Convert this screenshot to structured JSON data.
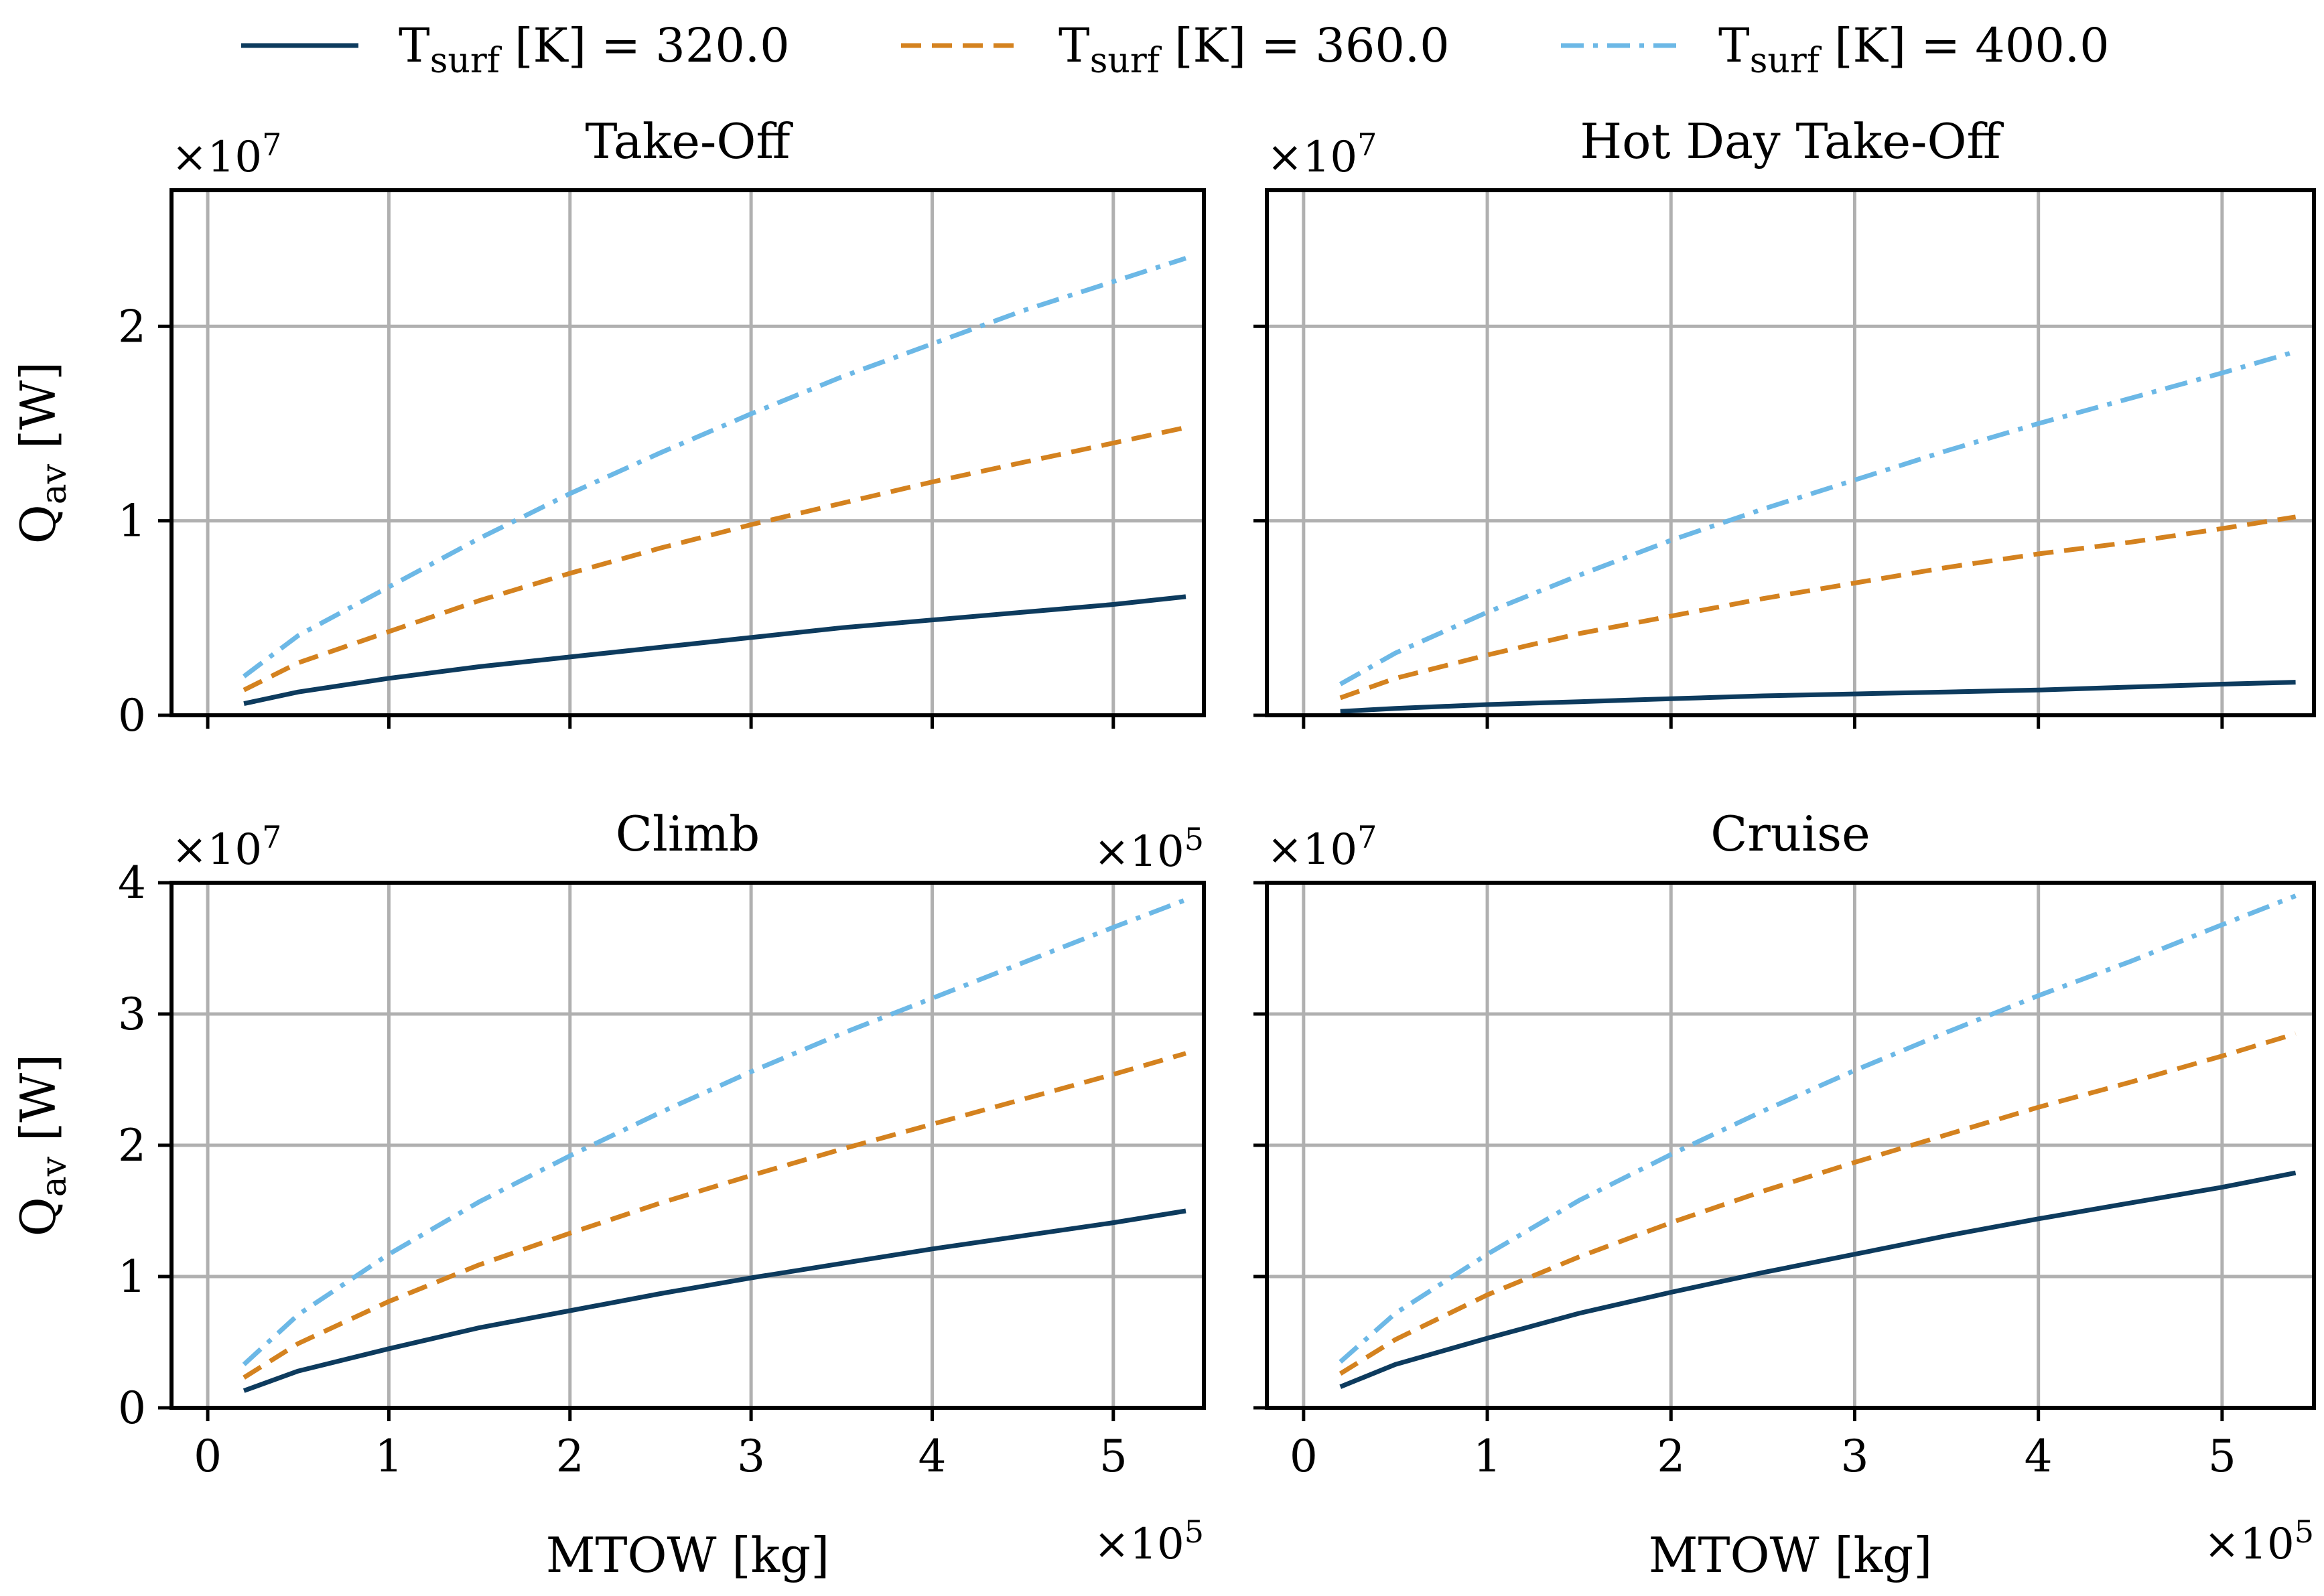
{
  "legend": {
    "entries": [
      {
        "label_main": "T",
        "label_sub": "surf",
        "label_rest": " [K] = 320.0",
        "color": "#0d3b5e",
        "dash": "solid"
      },
      {
        "label_main": "T",
        "label_sub": "surf",
        "label_rest": " [K] = 360.0",
        "color": "#d4821f",
        "dash": "dashed"
      },
      {
        "label_main": "T",
        "label_sub": "surf",
        "label_rest": " [K] = 400.0",
        "color": "#6cb8e6",
        "dash": "dashdot"
      }
    ]
  },
  "colors": {
    "grid": "#b0b0b0",
    "axes": "#000000"
  },
  "chart_data": [
    {
      "type": "line",
      "title": "Take-Off",
      "xlabel": "",
      "ylabel": "Q_av [W]",
      "xlim": [
        -0.2,
        5.5
      ],
      "ylim": [
        0,
        2.7
      ],
      "x_multiplier": "×10^5",
      "y_multiplier": "×10^7",
      "xticks": [
        0,
        1,
        2,
        3,
        4,
        5
      ],
      "yticks": [
        0,
        1,
        2
      ],
      "show_xtick_labels": false,
      "show_ytick_labels": true,
      "x": [
        0.2,
        0.5,
        1.0,
        1.5,
        2.0,
        2.5,
        3.0,
        3.5,
        4.0,
        4.5,
        5.0,
        5.4
      ],
      "series": [
        {
          "name": "T_surf [K] = 320.0",
          "values": [
            0.06,
            0.12,
            0.19,
            0.25,
            0.3,
            0.35,
            0.4,
            0.45,
            0.49,
            0.53,
            0.57,
            0.61
          ]
        },
        {
          "name": "T_surf [K] = 360.0",
          "values": [
            0.13,
            0.27,
            0.43,
            0.59,
            0.73,
            0.86,
            0.98,
            1.09,
            1.2,
            1.3,
            1.4,
            1.48
          ]
        },
        {
          "name": "T_surf [K] = 400.0",
          "values": [
            0.2,
            0.41,
            0.66,
            0.91,
            1.14,
            1.35,
            1.55,
            1.74,
            1.91,
            2.08,
            2.23,
            2.35
          ]
        }
      ]
    },
    {
      "type": "line",
      "title": "Hot Day Take-Off",
      "xlabel": "",
      "ylabel": "",
      "xlim": [
        -0.2,
        5.5
      ],
      "ylim": [
        0,
        2.7
      ],
      "x_multiplier": "",
      "y_multiplier": "×10^7",
      "xticks": [
        0,
        1,
        2,
        3,
        4,
        5
      ],
      "yticks": [
        0,
        1,
        2
      ],
      "show_xtick_labels": false,
      "show_ytick_labels": false,
      "x": [
        0.2,
        0.5,
        1.0,
        1.5,
        2.0,
        2.5,
        3.0,
        3.5,
        4.0,
        4.5,
        5.0,
        5.4
      ],
      "series": [
        {
          "name": "T_surf [K] = 320.0",
          "values": [
            0.02,
            0.035,
            0.055,
            0.07,
            0.085,
            0.1,
            0.11,
            0.12,
            0.13,
            0.145,
            0.16,
            0.17
          ]
        },
        {
          "name": "T_surf [K] = 360.0",
          "values": [
            0.09,
            0.19,
            0.31,
            0.42,
            0.51,
            0.6,
            0.68,
            0.76,
            0.83,
            0.89,
            0.96,
            1.02
          ]
        },
        {
          "name": "T_surf [K] = 400.0",
          "values": [
            0.16,
            0.32,
            0.53,
            0.72,
            0.9,
            1.06,
            1.21,
            1.36,
            1.5,
            1.63,
            1.76,
            1.87
          ]
        }
      ]
    },
    {
      "type": "line",
      "title": "Climb",
      "xlabel": "MTOW [kg]",
      "ylabel": "Q_av [W]",
      "xlim": [
        -0.2,
        5.5
      ],
      "ylim": [
        0,
        4.0
      ],
      "x_multiplier": "×10^5",
      "y_multiplier": "×10^7",
      "xticks": [
        0,
        1,
        2,
        3,
        4,
        5
      ],
      "yticks": [
        0,
        1,
        2,
        3,
        4
      ],
      "show_xtick_labels": true,
      "show_ytick_labels": true,
      "x": [
        0.2,
        0.5,
        1.0,
        1.5,
        2.0,
        2.5,
        3.0,
        3.5,
        4.0,
        4.5,
        5.0,
        5.4
      ],
      "series": [
        {
          "name": "T_surf [K] = 320.0",
          "values": [
            0.13,
            0.28,
            0.45,
            0.61,
            0.74,
            0.87,
            0.99,
            1.1,
            1.21,
            1.31,
            1.41,
            1.5
          ]
        },
        {
          "name": "T_surf [K] = 360.0",
          "values": [
            0.23,
            0.49,
            0.81,
            1.09,
            1.33,
            1.56,
            1.77,
            1.97,
            2.16,
            2.35,
            2.54,
            2.7
          ]
        },
        {
          "name": "T_surf [K] = 400.0",
          "values": [
            0.33,
            0.71,
            1.17,
            1.57,
            1.92,
            2.25,
            2.56,
            2.85,
            3.12,
            3.39,
            3.66,
            3.87
          ]
        }
      ]
    },
    {
      "type": "line",
      "title": "Cruise",
      "xlabel": "MTOW [kg]",
      "ylabel": "",
      "xlim": [
        -0.2,
        5.5
      ],
      "ylim": [
        0,
        4.0
      ],
      "x_multiplier": "×10^5",
      "y_multiplier": "×10^7",
      "xticks": [
        0,
        1,
        2,
        3,
        4,
        5
      ],
      "yticks": [
        0,
        1,
        2,
        3,
        4
      ],
      "show_xtick_labels": true,
      "show_ytick_labels": false,
      "x": [
        0.2,
        0.5,
        1.0,
        1.5,
        2.0,
        2.5,
        3.0,
        3.5,
        4.0,
        4.5,
        5.0,
        5.4
      ],
      "series": [
        {
          "name": "T_surf [K] = 320.0",
          "values": [
            0.16,
            0.33,
            0.53,
            0.72,
            0.88,
            1.03,
            1.17,
            1.31,
            1.44,
            1.56,
            1.68,
            1.79
          ]
        },
        {
          "name": "T_surf [K] = 360.0",
          "values": [
            0.26,
            0.52,
            0.86,
            1.15,
            1.41,
            1.65,
            1.87,
            2.08,
            2.29,
            2.48,
            2.68,
            2.85
          ]
        },
        {
          "name": "T_surf [K] = 400.0",
          "values": [
            0.35,
            0.72,
            1.17,
            1.58,
            1.93,
            2.26,
            2.57,
            2.86,
            3.14,
            3.4,
            3.68,
            3.9
          ]
        }
      ]
    }
  ]
}
